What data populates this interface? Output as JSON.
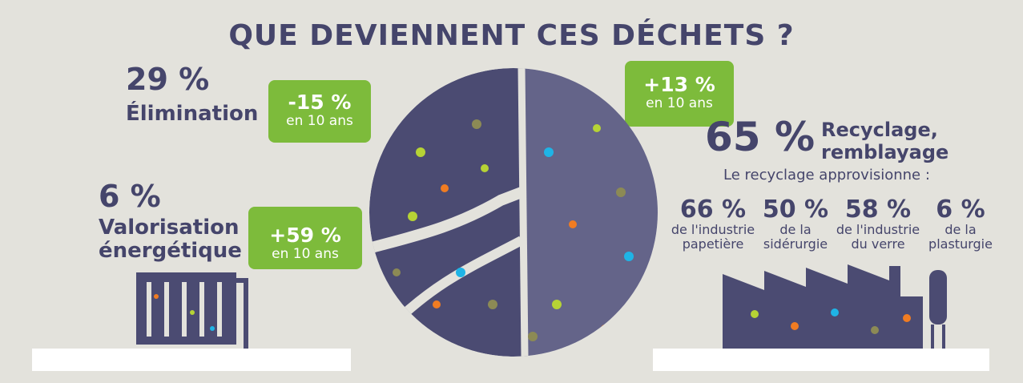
{
  "title": "QUE DEVIENNENT CES DÉCHETS ?",
  "elimination": {
    "percent": "29 %",
    "label": "Élimination"
  },
  "valorisation": {
    "percent": "6 %",
    "label_line1": "Valorisation",
    "label_line2": "énergétique"
  },
  "tag_elimination": {
    "change": "-15 %",
    "period": "en 10 ans"
  },
  "tag_valorisation": {
    "change": "+59 %",
    "period": "en 10 ans"
  },
  "tag_recyclage": {
    "change": "+13 %",
    "period": "en 10 ans"
  },
  "recyclage": {
    "percent": "65 %",
    "label_line1": "Recyclage,",
    "label_line2": "remblayage",
    "subtitle": "Le recyclage approvisionne :",
    "stats": [
      {
        "value": "66 %",
        "line1": "de l'industrie",
        "line2": "papetière"
      },
      {
        "value": "50 %",
        "line1": "de la",
        "line2": "sidérurgie"
      },
      {
        "value": "58 %",
        "line1": "de l'industrie",
        "line2": "du verre"
      },
      {
        "value": "6 %",
        "line1": "de la",
        "line2": "plasturgie"
      }
    ]
  },
  "colors": {
    "background": "#e3e2dc",
    "text": "#45456b",
    "tag_green": "#7dbb3b",
    "waste_dark": "#4b4b72",
    "accent_orange": "#f07c22",
    "accent_blue": "#1fb4e6",
    "accent_lime": "#b6d335",
    "accent_olive": "#8c8a55"
  }
}
